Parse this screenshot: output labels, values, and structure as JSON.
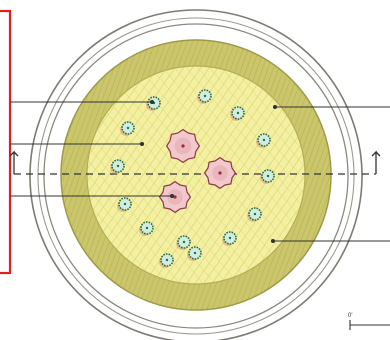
{
  "diagram": {
    "scale_bar": {
      "label": "0'"
    },
    "colors": {
      "highlight_box": "#e0201b",
      "rim": "#8a8a7a",
      "crust": "#c9c66a",
      "crust_edge": "#a8a24c",
      "filling": "#f3f0a4",
      "filling_hatch": "#d9d160",
      "herb_fill": "#cfeee0",
      "herb_stroke": "#2f6b45",
      "herb_shade": "#d98a6a",
      "meat_fill": "#f1c9cc",
      "meat_stroke": "#8c3a45",
      "meat_center": "#8e2f3c",
      "leader": "#333333"
    },
    "elements": [
      {
        "name": "outer-plate-rim",
        "icon": "circle"
      },
      {
        "name": "crust",
        "icon": "circle"
      },
      {
        "name": "filling",
        "icon": "circle"
      },
      {
        "name": "herb-pieces",
        "icon": "herb-icon",
        "count": 14
      },
      {
        "name": "meat-pieces",
        "icon": "meat-icon",
        "count": 3
      },
      {
        "name": "section-cut-line",
        "icon": "dashed-line"
      }
    ]
  }
}
